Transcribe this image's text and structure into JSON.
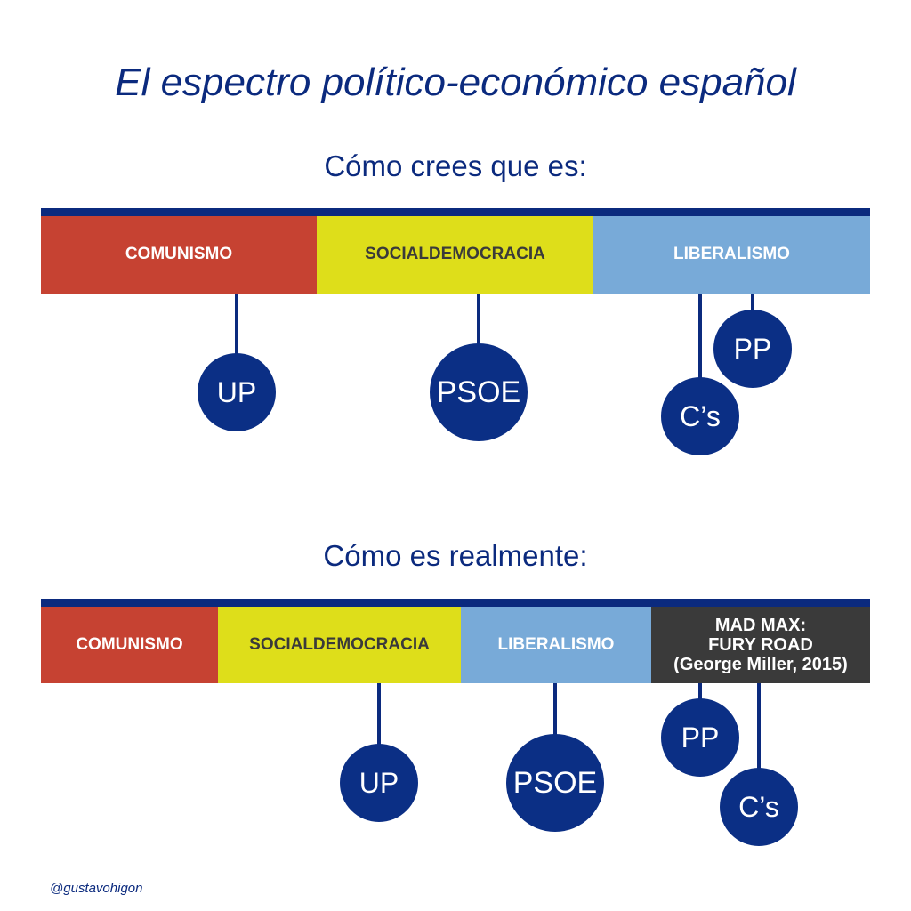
{
  "title": "El espectro político-económico español",
  "perceived": {
    "subtitle": "Cómo crees que es:",
    "segments": [
      "COMUNISMO",
      "SOCIALDEMOCRACIA",
      "LIBERALISMO"
    ],
    "parties": {
      "up": "UP",
      "psoe": "PSOE",
      "cs": "C’s",
      "pp": "PP"
    }
  },
  "reality": {
    "subtitle": "Cómo es realmente:",
    "segments": [
      "COMUNISMO",
      "SOCIALDEMOCRACIA",
      "LIBERALISMO"
    ],
    "madmax": [
      "MAD MAX:",
      "FURY ROAD",
      "(George Miller, 2015)"
    ],
    "parties": {
      "up": "UP",
      "psoe": "PSOE",
      "pp": "PP",
      "cs": "C’s"
    }
  },
  "credit": "@gustavohigon",
  "colors": {
    "navy": "#0b2a7e",
    "comunismo": "#c64232",
    "socialdemocracia": "#dede1a",
    "liberalismo": "#78aad8",
    "madmax": "#3a3a3a"
  }
}
